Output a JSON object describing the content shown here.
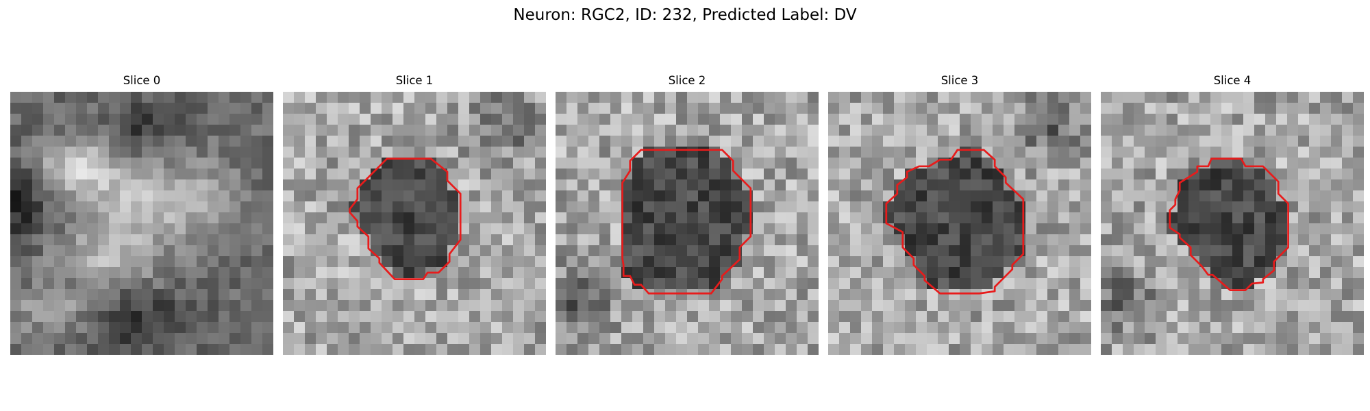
{
  "figure": {
    "title": "Neuron: RGC2, ID: 232, Predicted Label: DV"
  },
  "colors": {
    "contour": "#e81b1b",
    "background": "#ffffff"
  },
  "grid_size": 24,
  "panels": [
    {
      "title": "Slice 0",
      "has_contour": false,
      "contour": []
    },
    {
      "title": "Slice 1",
      "has_contour": true,
      "contour": [
        [
          9.5,
          6.1
        ],
        [
          13.5,
          6.1
        ],
        [
          15,
          7.3
        ],
        [
          15,
          8.1
        ],
        [
          16.2,
          9.3
        ],
        [
          16.2,
          13.5
        ],
        [
          15.2,
          14.8
        ],
        [
          15.2,
          15.5
        ],
        [
          14.2,
          16.5
        ],
        [
          13.2,
          16.5
        ],
        [
          12.8,
          17.1
        ],
        [
          10.2,
          17.1
        ],
        [
          8.8,
          15.6
        ],
        [
          8.8,
          15.2
        ],
        [
          7.8,
          14.3
        ],
        [
          7.8,
          13.2
        ],
        [
          6.8,
          12.3
        ],
        [
          6.8,
          11.8
        ],
        [
          6.1,
          11.0
        ],
        [
          6.1,
          10.7
        ],
        [
          6.8,
          9.8
        ],
        [
          6.8,
          8.8
        ]
      ]
    },
    {
      "title": "Slice 2",
      "has_contour": true,
      "contour": [
        [
          7.8,
          5.3
        ],
        [
          15.2,
          5.3
        ],
        [
          16.2,
          6.3
        ],
        [
          16.2,
          7.2
        ],
        [
          17.8,
          8.8
        ],
        [
          17.8,
          13.2
        ],
        [
          16.8,
          14.2
        ],
        [
          16.8,
          15.3
        ],
        [
          15.2,
          16.8
        ],
        [
          15.2,
          17.1
        ],
        [
          14.2,
          18.4
        ],
        [
          8.5,
          18.4
        ],
        [
          7.8,
          17.6
        ],
        [
          7.2,
          17.6
        ],
        [
          6.8,
          16.8
        ],
        [
          6.2,
          16.8
        ],
        [
          6.2,
          15.8
        ],
        [
          6.1,
          15.2
        ],
        [
          6.1,
          8.3
        ],
        [
          6.8,
          7.2
        ],
        [
          6.8,
          6.3
        ]
      ]
    },
    {
      "title": "Slice 3",
      "has_contour": true,
      "contour": [
        [
          11.8,
          5.3
        ],
        [
          14.2,
          5.3
        ],
        [
          15.2,
          6.2
        ],
        [
          15.2,
          6.8
        ],
        [
          16.2,
          7.8
        ],
        [
          16.2,
          8.3
        ],
        [
          17.8,
          9.8
        ],
        [
          17.8,
          14.8
        ],
        [
          16.8,
          15.8
        ],
        [
          16.8,
          16.2
        ],
        [
          15.2,
          17.8
        ],
        [
          15.2,
          18.2
        ],
        [
          13.8,
          18.4
        ],
        [
          10.2,
          18.4
        ],
        [
          8.8,
          17.2
        ],
        [
          8.8,
          16.8
        ],
        [
          7.8,
          15.8
        ],
        [
          7.8,
          15.2
        ],
        [
          6.8,
          14.2
        ],
        [
          6.8,
          12.8
        ],
        [
          5.3,
          12.0
        ],
        [
          5.3,
          10.2
        ],
        [
          6.3,
          9.3
        ],
        [
          6.3,
          8.5
        ],
        [
          7.2,
          7.8
        ],
        [
          7.2,
          7.3
        ],
        [
          8.3,
          6.8
        ],
        [
          9.2,
          6.8
        ],
        [
          10.2,
          6.2
        ],
        [
          11.2,
          6.2
        ]
      ]
    },
    {
      "title": "Slice 4",
      "has_contour": true,
      "contour": [
        [
          10.1,
          6.1
        ],
        [
          12.8,
          6.1
        ],
        [
          13.2,
          6.8
        ],
        [
          14.8,
          6.8
        ],
        [
          16.2,
          8.2
        ],
        [
          16.2,
          9.3
        ],
        [
          17.1,
          10.2
        ],
        [
          17.1,
          14.2
        ],
        [
          15.8,
          15.5
        ],
        [
          15.8,
          16.3
        ],
        [
          14.8,
          17.1
        ],
        [
          14.8,
          17.4
        ],
        [
          13.8,
          17.5
        ],
        [
          13.2,
          18.1
        ],
        [
          11.8,
          18.1
        ],
        [
          10.2,
          16.7
        ],
        [
          9.8,
          16.7
        ],
        [
          9.2,
          15.9
        ],
        [
          8.2,
          14.9
        ],
        [
          8.2,
          14.2
        ],
        [
          7.2,
          13.3
        ],
        [
          7.2,
          13.0
        ],
        [
          6.3,
          12.4
        ],
        [
          6.3,
          10.8
        ],
        [
          6.8,
          10.3
        ],
        [
          6.8,
          9.8
        ],
        [
          7.2,
          9.0
        ],
        [
          7.2,
          8.3
        ],
        [
          8.8,
          7.3
        ],
        [
          8.8,
          6.8
        ],
        [
          9.8,
          6.8
        ]
      ]
    }
  ]
}
